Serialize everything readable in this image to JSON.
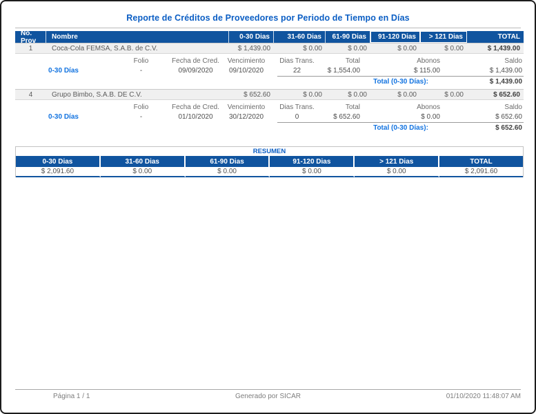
{
  "title": "Reporte de Créditos de Proveedores por Periodo de Tiempo en Días",
  "colors": {
    "header_blue": "#10549f",
    "title_blue": "#0b5ec4",
    "link_blue": "#1273e0",
    "row_gray": "#f0f0f0"
  },
  "main_table": {
    "headers": [
      "No. Prov",
      "Nombre",
      "0-30 Dias",
      "31-60 Dias",
      "61-90 Dias",
      "91-120 Dias",
      "> 121 Dias",
      "TOTAL"
    ]
  },
  "detail_headers": [
    "Folio",
    "Fecha de Cred.",
    "Vencimiento",
    "Dias Trans.",
    "Total",
    "Abonos",
    "Saldo"
  ],
  "providers": [
    {
      "num": "1",
      "name": "Coca-Cola FEMSA, S.A.B. de C.V.",
      "d0_30": "$ 1,439.00",
      "d31_60": "$ 0.00",
      "d61_90": "$ 0.00",
      "d91_120": "$ 0.00",
      "d121": "$ 0.00",
      "total": "$ 1,439.00",
      "period_link": "0-30 Días",
      "folio": "-",
      "fecha_cred": "09/09/2020",
      "vencimiento": "09/10/2020",
      "dias_trans": "22",
      "det_total": "$ 1,554.00",
      "abonos": "$ 115.00",
      "saldo": "$ 1,439.00",
      "total_label": "Total (0-30 Días):",
      "total_value": "$ 1,439.00"
    },
    {
      "num": "4",
      "name": "Grupo Bimbo, S.A.B. DE C.V.",
      "d0_30": "$ 652.60",
      "d31_60": "$ 0.00",
      "d61_90": "$ 0.00",
      "d91_120": "$ 0.00",
      "d121": "$ 0.00",
      "total": "$ 652.60",
      "period_link": "0-30 Días",
      "folio": "-",
      "fecha_cred": "01/10/2020",
      "vencimiento": "30/12/2020",
      "dias_trans": "0",
      "det_total": "$ 652.60",
      "abonos": "$ 0.00",
      "saldo": "$ 652.60",
      "total_label": "Total (0-30 Días):",
      "total_value": "$ 652.60"
    }
  ],
  "resumen": {
    "title": "RESUMEN",
    "headers": [
      "0-30 Dias",
      "31-60 Dias",
      "61-90 Dias",
      "91-120 Dias",
      "> 121 Dias",
      "TOTAL"
    ],
    "values": [
      "$ 2,091.60",
      "$ 0.00",
      "$ 0.00",
      "$ 0.00",
      "$ 0.00",
      "$ 2,091.60"
    ]
  },
  "footer": {
    "page": "Página 1 / 1",
    "generated": "Generado por SICAR",
    "datetime": "01/10/2020 11:48:07 AM"
  }
}
